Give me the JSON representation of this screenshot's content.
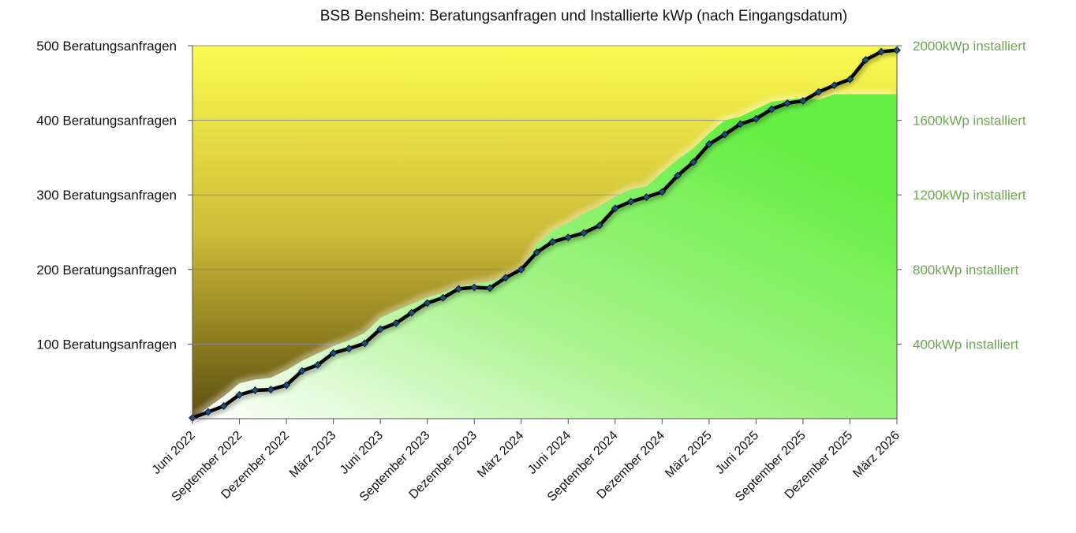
{
  "chart_data": {
    "type": "line",
    "title": "BSB Bensheim: Beratungsanfragen und Installierte kWp (nach Eingangsdatum)",
    "x_tick_labels": [
      "Juni 2022",
      "September 2022",
      "Dezember 2022",
      "März 2023",
      "Juni 2023",
      "September 2023",
      "Dezember 2023",
      "März 2024",
      "Juni 2024",
      "September 2024",
      "Dezember 2024",
      "März 2025",
      "Juni 2025",
      "September 2025",
      "Dezember 2025",
      "März 2026"
    ],
    "x_start": "2022-06",
    "x_end": "2026-03",
    "left_axis": {
      "ticks": [
        100,
        200,
        300,
        400,
        500
      ],
      "tick_labels": [
        "100 Beratungsanfragen",
        "200 Beratungsanfragen",
        "300 Beratungsanfragen",
        "400 Beratungsanfragen",
        "500 Beratungsanfragen"
      ],
      "ylim": [
        0,
        500
      ]
    },
    "right_axis": {
      "ticks": [
        400,
        800,
        1200,
        1600,
        2000
      ],
      "tick_labels": [
        "400kWp installiert",
        "800kWp installiert",
        "1200kWp installiert",
        "1600kWp installiert",
        "2000kWp installiert"
      ],
      "ylim": [
        0,
        2000
      ]
    },
    "grid": true,
    "legend": "none",
    "colors": {
      "line": "#000000",
      "marker": "#1f4e79",
      "area": "#66ee44",
      "plot_top": "#fbfb50",
      "plot_bottom": "#5c4e10",
      "right_axis_text": "#6aa84f"
    },
    "series": [
      {
        "axis": "left",
        "type": "line",
        "x": [
          "2022-06",
          "2022-07",
          "2022-08",
          "2022-09",
          "2022-10",
          "2022-11",
          "2022-12",
          "2023-01",
          "2023-02",
          "2023-03",
          "2023-04",
          "2023-05",
          "2023-06",
          "2023-07",
          "2023-08",
          "2023-09",
          "2023-10",
          "2023-11",
          "2023-12",
          "2024-01",
          "2024-02",
          "2024-03",
          "2024-04",
          "2024-05",
          "2024-06",
          "2024-07",
          "2024-08",
          "2024-09",
          "2024-10",
          "2024-11",
          "2024-12",
          "2025-01",
          "2025-02",
          "2025-03",
          "2025-04",
          "2025-05",
          "2025-06",
          "2025-07",
          "2025-08",
          "2025-09",
          "2025-10",
          "2025-11",
          "2025-12",
          "2026-01",
          "2026-02",
          "2026-03"
        ],
        "values": [
          1,
          9,
          17,
          32,
          38,
          39,
          45,
          64,
          72,
          88,
          94,
          101,
          120,
          128,
          142,
          155,
          162,
          174,
          176,
          175,
          189,
          200,
          223,
          237,
          243,
          249,
          259,
          282,
          291,
          297,
          304,
          326,
          344,
          368,
          381,
          395,
          402,
          415,
          423,
          426,
          438,
          447,
          455,
          481,
          492,
          494
        ]
      },
      {
        "axis": "right",
        "type": "area",
        "x": [
          "2022-06",
          "2022-07",
          "2022-08",
          "2022-09",
          "2022-10",
          "2022-11",
          "2022-12",
          "2023-01",
          "2023-02",
          "2023-03",
          "2023-04",
          "2023-05",
          "2023-06",
          "2023-07",
          "2023-08",
          "2023-09",
          "2023-10",
          "2023-11",
          "2023-12",
          "2024-01",
          "2024-02",
          "2024-03",
          "2024-04",
          "2024-05",
          "2024-06",
          "2024-07",
          "2024-08",
          "2024-09",
          "2024-10",
          "2024-11",
          "2024-12",
          "2025-01",
          "2025-02",
          "2025-03",
          "2025-04",
          "2025-05",
          "2025-06",
          "2025-07",
          "2025-08",
          "2025-09",
          "2025-10",
          "2025-11",
          "2025-12",
          "2026-01",
          "2026-02",
          "2026-03"
        ],
        "values": [
          0,
          60,
          120,
          190,
          210,
          220,
          260,
          310,
          350,
          390,
          420,
          460,
          540,
          580,
          615,
          650,
          675,
          710,
          725,
          735,
          765,
          800,
          935,
          1010,
          1050,
          1100,
          1140,
          1190,
          1230,
          1245,
          1320,
          1390,
          1450,
          1530,
          1600,
          1620,
          1660,
          1700,
          1710,
          1720,
          1710,
          1740,
          1740,
          1740,
          1740,
          1740
        ]
      }
    ]
  }
}
